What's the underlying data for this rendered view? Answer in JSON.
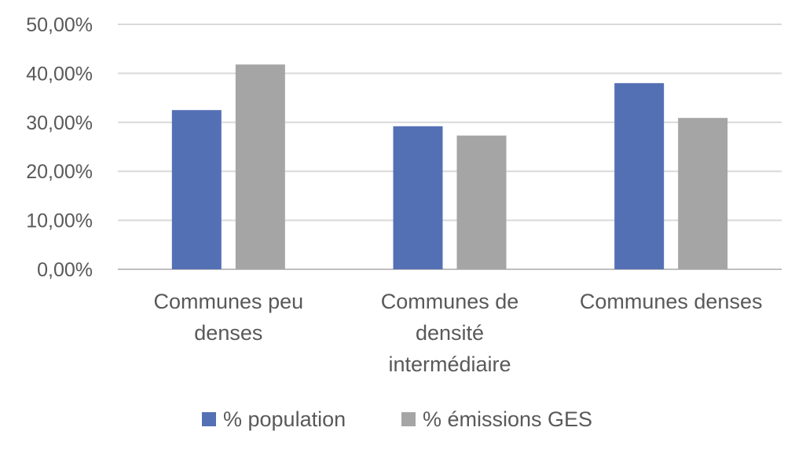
{
  "chart_data": {
    "type": "bar",
    "title": "",
    "xlabel": "",
    "ylabel": "",
    "categories": [
      [
        "Communes peu",
        "denses"
      ],
      [
        "Communes de",
        "densité",
        "intermédiaire"
      ],
      [
        "Communes denses"
      ]
    ],
    "series": [
      {
        "name": "% population",
        "values": [
          32.5,
          29.2,
          38.0
        ],
        "color": "#5470b5"
      },
      {
        "name": "% émissions GES",
        "values": [
          41.8,
          27.3,
          30.9
        ],
        "color": "#a5a5a5"
      }
    ],
    "ylim": [
      0,
      50
    ],
    "yticks": [
      0,
      10,
      20,
      30,
      40,
      50
    ],
    "ytick_labels": [
      "0,00%",
      "10,00%",
      "20,00%",
      "30,00%",
      "40,00%",
      "50,00%"
    ],
    "grid": true,
    "legend_position": "bottom"
  }
}
